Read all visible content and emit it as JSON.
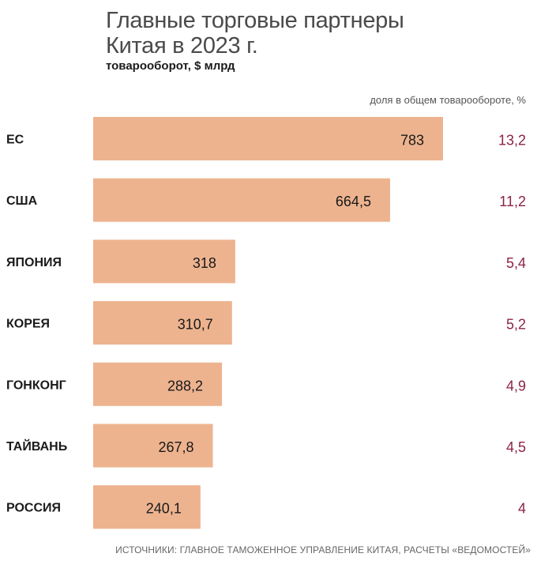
{
  "title_line1": "Главные торговые партнеры",
  "title_line2": "Китая в 2023 г.",
  "subtitle": "товарооборот, $ млрд",
  "share_header": "доля в общем товарообороте, %",
  "source": "ИСТОЧНИКИ: ГЛАВНОЕ ТАМОЖЕННОЕ УПРАВЛЕНИЕ КИТАЯ, РАСЧЕТЫ «ВЕДОМОСТЕЙ»",
  "colors": {
    "bar": "#EDB38F",
    "share_text": "#8B2249",
    "value_text": "#1a1a1a"
  },
  "chart_data": {
    "type": "bar",
    "orientation": "horizontal",
    "categories": [
      "ЕС",
      "США",
      "ЯПОНИЯ",
      "КОРЕЯ",
      "ГОНКОНГ",
      "ТАЙВАНЬ",
      "РОССИЯ"
    ],
    "values": [
      783,
      664.5,
      318,
      310.7,
      288.2,
      267.8,
      240.1
    ],
    "value_labels": [
      "783",
      "664,5",
      "318",
      "310,7",
      "288,2",
      "267,8",
      "240,1"
    ],
    "shares": [
      "13,2",
      "11,2",
      "5,4",
      "5,2",
      "4,9",
      "4,5",
      "4"
    ],
    "grid": false,
    "legend": "none"
  }
}
